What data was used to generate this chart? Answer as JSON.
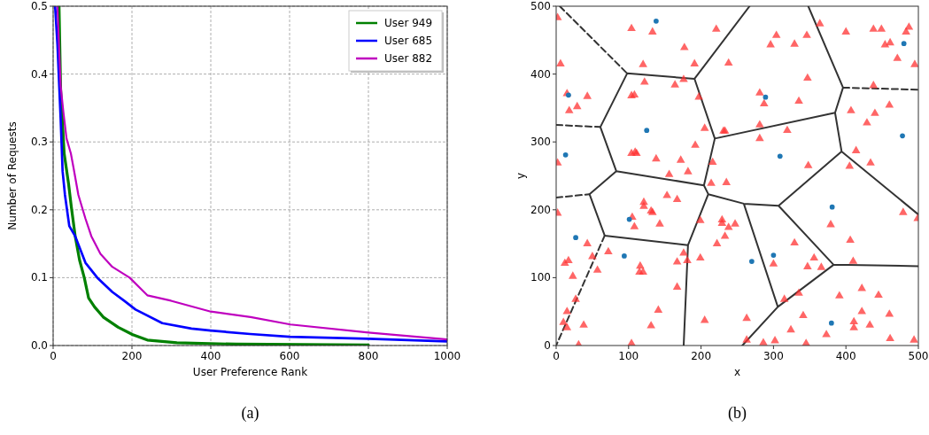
{
  "chart_data": [
    {
      "type": "line",
      "xlabel": "User Preference Rank",
      "ylabel": "Number of Requests",
      "xlim": [
        0,
        1000
      ],
      "ylim": [
        0,
        0.5
      ],
      "xticks": [
        0,
        200,
        400,
        600,
        800,
        1000
      ],
      "yticks": [
        {
          "value": 0,
          "label": "0.0"
        },
        0.1,
        0.2,
        0.3,
        0.4,
        0.5
      ],
      "grid": true,
      "legend": "top right",
      "annotations": [
        "(a)"
      ],
      "series": [
        {
          "name": "User 949",
          "color": "#008000",
          "x": [
            15,
            19,
            28,
            39,
            46,
            56,
            67,
            79,
            90,
            105,
            127,
            165,
            202,
            239,
            314,
            464,
            800
          ],
          "values": [
            0.5,
            0.378,
            0.283,
            0.239,
            0.205,
            0.161,
            0.126,
            0.1,
            0.07,
            0.057,
            0.042,
            0.027,
            0.016,
            0.008,
            0.004,
            0.002,
            0.001
          ]
        },
        {
          "name": "User 685",
          "color": "#0000ff",
          "x": [
            5,
            11,
            19,
            24,
            30,
            41,
            56,
            82,
            112,
            150,
            180,
            209,
            277,
            351,
            400,
            500,
            600,
            800,
            1000
          ],
          "values": [
            0.5,
            0.443,
            0.335,
            0.257,
            0.222,
            0.176,
            0.161,
            0.122,
            0.1,
            0.079,
            0.066,
            0.053,
            0.033,
            0.025,
            0.022,
            0.017,
            0.013,
            0.01,
            0.006
          ]
        },
        {
          "name": "User 882",
          "color": "#bf00bf",
          "x": [
            11,
            19,
            26,
            34,
            45,
            52,
            64,
            82,
            97,
            120,
            150,
            194,
            239,
            299,
            400,
            501,
            602,
            800,
            1000
          ],
          "values": [
            0.5,
            0.383,
            0.344,
            0.305,
            0.283,
            0.261,
            0.222,
            0.187,
            0.161,
            0.135,
            0.116,
            0.1,
            0.074,
            0.066,
            0.05,
            0.042,
            0.031,
            0.019,
            0.009
          ]
        }
      ]
    },
    {
      "type": "scatter",
      "xlabel": "x",
      "ylabel": "y",
      "xlim": [
        0,
        500
      ],
      "ylim": [
        0,
        500
      ],
      "xticks": [
        0,
        100,
        200,
        300,
        400,
        500
      ],
      "yticks": [
        0,
        100,
        200,
        300,
        400,
        500
      ],
      "annotations": [
        "(b)"
      ],
      "series": [
        {
          "type": "line",
          "color": "#333333",
          "marker": "none",
          "line_style": "solid",
          "x": [
            267,
            191,
            98,
            61,
            83,
            204,
            null,
            191,
            219,
            385,
            396,
            348,
            null,
            385,
            394,
            500,
            null,
            219,
            204,
            210,
            259,
            307,
            394,
            null,
            210,
            182,
            176,
            null,
            46,
            83,
            null,
            46,
            67,
            182,
            null,
            307,
            383,
            500,
            null,
            259,
            306,
            383,
            null,
            306,
            257
          ],
          "values": [
            500,
            393,
            401,
            322,
            257,
            236,
            null,
            393,
            305,
            343,
            380,
            500,
            null,
            343,
            286,
            193,
            null,
            305,
            236,
            223,
            209,
            206,
            286,
            null,
            223,
            148,
            0,
            null,
            223,
            257,
            null,
            223,
            162,
            148,
            null,
            206,
            119,
            117,
            null,
            209,
            57,
            119,
            null,
            57,
            0
          ]
        },
        {
          "type": "line",
          "color": "#333333",
          "marker": "none",
          "line_style": "dashed",
          "x": [
            5,
            98,
            null,
            0,
            61,
            null,
            0,
            46,
            null,
            67,
            0,
            null,
            396,
            500
          ],
          "values": [
            500,
            401,
            null,
            325,
            322,
            null,
            218,
            223,
            null,
            162,
            0,
            null,
            380,
            377
          ]
        },
        {
          "color": "#ff3333",
          "marker": "triangle",
          "x": [
            2,
            104,
            133,
            221,
            177,
            6,
            120,
            191,
            238,
            122,
            164,
            176,
            15,
            43,
            29,
            18,
            104,
            108,
            197,
            205,
            231,
            233,
            192,
            104,
            109,
            111,
            138,
            172,
            216,
            2,
            156,
            182,
            364,
            400,
            438,
            449,
            487,
            483,
            304,
            346,
            296,
            329,
            461,
            454,
            471,
            495,
            347,
            281,
            287,
            335,
            438,
            407,
            440,
            460,
            429,
            281,
            319,
            281,
            414,
            348,
            405,
            434,
            214,
            235,
            2,
            121,
            121,
            153,
            167,
            131,
            133,
            105,
            108,
            143,
            199,
            229,
            229,
            238,
            247,
            233,
            222,
            43,
            72,
            50,
            12,
            17,
            57,
            23,
            116,
            115,
            120,
            167,
            176,
            181,
            199,
            167,
            27,
            15,
            141,
            10,
            15,
            38,
            131,
            205,
            31,
            104,
            479,
            499,
            379,
            406,
            329,
            300,
            347,
            356,
            366,
            410,
            422,
            445,
            391,
            335,
            315,
            263,
            341,
            422,
            460,
            411,
            411,
            433,
            324,
            373,
            263,
            286,
            302,
            345,
            461,
            494
          ],
          "values": [
            483,
            467,
            462,
            466,
            439,
            415,
            414,
            415,
            416,
            388,
            384,
            392,
            371,
            367,
            352,
            346,
            368,
            369,
            366,
            320,
            316,
            316,
            295,
            283,
            285,
            283,
            275,
            273,
            270,
            269,
            252,
            256,
            474,
            462,
            466,
            466,
            469,
            462,
            457,
            457,
            443,
            444,
            446,
            443,
            423,
            414,
            394,
            372,
            356,
            360,
            383,
            346,
            342,
            354,
            328,
            325,
            317,
            305,
            287,
            265,
            264,
            269,
            239,
            240,
            195,
            211,
            205,
            221,
            215,
            198,
            196,
            189,
            175,
            179,
            184,
            185,
            180,
            174,
            179,
            161,
            150,
            150,
            138,
            131,
            121,
            125,
            111,
            102,
            117,
            108,
            108,
            123,
            136,
            125,
            129,
            86,
            68,
            50,
            52,
            34,
            26,
            30,
            29,
            37,
            1,
            3,
            196,
            187,
            178,
            155,
            151,
            120,
            116,
            129,
            115,
            124,
            84,
            74,
            73,
            77,
            68,
            40,
            44,
            50,
            46,
            35,
            26,
            30,
            23,
            16,
            8,
            4,
            7,
            3,
            10,
            8
          ]
        },
        {
          "color": "#1f77b4",
          "marker": "circle",
          "x": [
            138,
            17,
            125,
            13,
            480,
            289,
            309,
            478,
            381,
            101,
            27,
            94,
            270,
            300,
            380
          ],
          "values": [
            478,
            369,
            317,
            281,
            445,
            366,
            279,
            309,
            204,
            186,
            159,
            132,
            124,
            133,
            33
          ]
        }
      ]
    }
  ]
}
